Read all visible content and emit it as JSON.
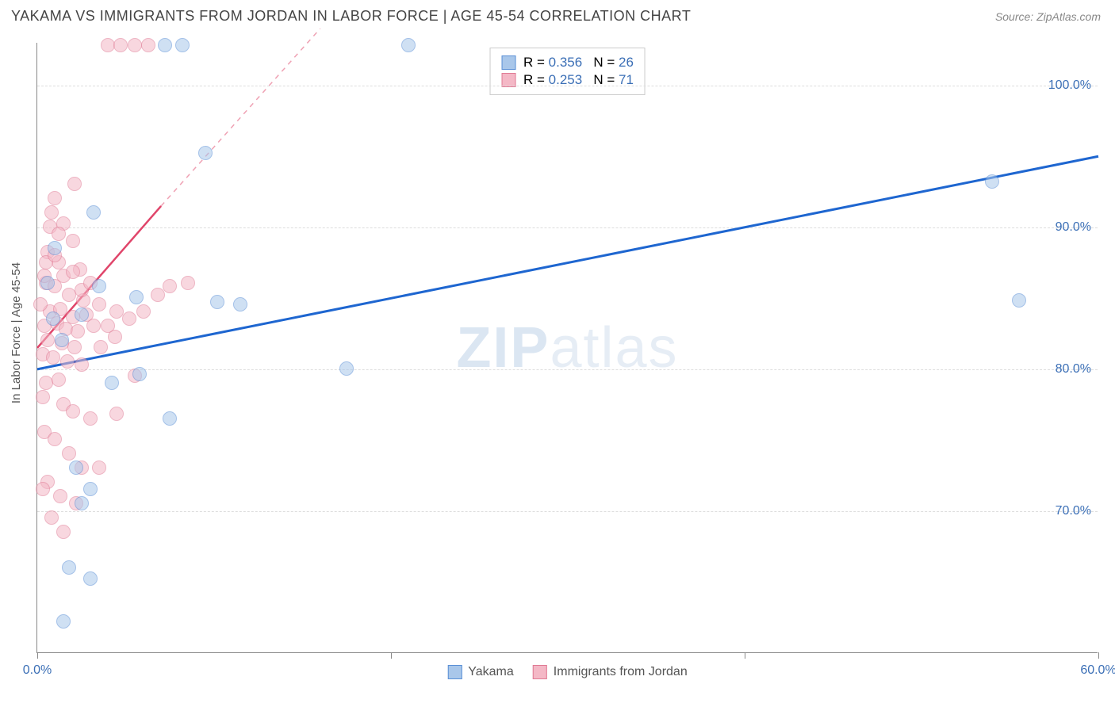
{
  "header": {
    "title": "YAKAMA VS IMMIGRANTS FROM JORDAN IN LABOR FORCE | AGE 45-54 CORRELATION CHART",
    "source": "Source: ZipAtlas.com"
  },
  "watermark": {
    "zip": "ZIP",
    "atlas": "atlas"
  },
  "chart": {
    "type": "scatter",
    "ylabel": "In Labor Force | Age 45-54",
    "xlim": [
      0,
      60
    ],
    "ylim": [
      60,
      103
    ],
    "xtick_values": [
      0,
      20,
      40,
      60
    ],
    "xtick_labels": [
      "0.0%",
      "",
      "",
      "60.0%"
    ],
    "ytick_values": [
      70,
      80,
      90,
      100
    ],
    "ytick_labels": [
      "70.0%",
      "80.0%",
      "90.0%",
      "100.0%"
    ],
    "grid_color": "#dddddd",
    "axis_color": "#888888",
    "label_color": "#3b6fb6",
    "background_color": "#ffffff",
    "marker_radius": 9,
    "marker_opacity": 0.55,
    "series": [
      {
        "name": "Yakama",
        "color_fill": "#a9c7ea",
        "color_stroke": "#5a8fd6",
        "R": "0.356",
        "N": "26",
        "trend": {
          "x1": 0,
          "y1": 80.0,
          "x2": 60,
          "y2": 95.0,
          "color": "#1e66d0",
          "width": 3,
          "dash_from_x": 60
        },
        "points": [
          [
            7.2,
            102.8
          ],
          [
            8.2,
            102.8
          ],
          [
            21.0,
            102.8
          ],
          [
            9.5,
            95.2
          ],
          [
            3.2,
            91.0
          ],
          [
            5.6,
            85.0
          ],
          [
            10.2,
            84.7
          ],
          [
            11.5,
            84.5
          ],
          [
            55.5,
            84.8
          ],
          [
            54.0,
            93.2
          ],
          [
            17.5,
            80.0
          ],
          [
            5.8,
            79.6
          ],
          [
            4.2,
            79.0
          ],
          [
            7.5,
            76.5
          ],
          [
            3.0,
            71.5
          ],
          [
            2.5,
            70.5
          ],
          [
            1.8,
            66.0
          ],
          [
            3.0,
            65.2
          ],
          [
            1.5,
            62.2
          ],
          [
            2.2,
            73.0
          ],
          [
            0.9,
            83.5
          ],
          [
            1.4,
            82.0
          ],
          [
            2.5,
            83.8
          ],
          [
            1.0,
            88.5
          ],
          [
            0.6,
            86.0
          ],
          [
            3.5,
            85.8
          ]
        ]
      },
      {
        "name": "Immigrants from Jordan",
        "color_fill": "#f4b8c6",
        "color_stroke": "#e07a94",
        "R": "0.253",
        "N": "71",
        "trend": {
          "x1": 0,
          "y1": 81.5,
          "x2": 7.0,
          "y2": 91.5,
          "color": "#e0456a",
          "width": 2.5,
          "dash_from_x": 7.0,
          "dash_x2": 16,
          "dash_y2": 104
        },
        "points": [
          [
            4.0,
            102.8
          ],
          [
            4.7,
            102.8
          ],
          [
            5.5,
            102.8
          ],
          [
            6.3,
            102.8
          ],
          [
            2.1,
            93.0
          ],
          [
            1.0,
            92.0
          ],
          [
            0.8,
            91.0
          ],
          [
            1.5,
            90.2
          ],
          [
            2.0,
            89.0
          ],
          [
            0.6,
            88.2
          ],
          [
            1.2,
            87.5
          ],
          [
            2.4,
            87.0
          ],
          [
            0.5,
            86.0
          ],
          [
            1.0,
            85.8
          ],
          [
            1.8,
            85.2
          ],
          [
            2.6,
            84.8
          ],
          [
            0.7,
            84.0
          ],
          [
            1.3,
            84.2
          ],
          [
            2.0,
            83.6
          ],
          [
            2.8,
            83.8
          ],
          [
            0.4,
            83.0
          ],
          [
            1.1,
            83.2
          ],
          [
            1.6,
            82.8
          ],
          [
            2.3,
            82.6
          ],
          [
            3.2,
            83.0
          ],
          [
            0.6,
            82.0
          ],
          [
            1.4,
            81.8
          ],
          [
            2.1,
            81.5
          ],
          [
            0.3,
            81.0
          ],
          [
            0.9,
            80.8
          ],
          [
            1.7,
            80.5
          ],
          [
            2.5,
            80.3
          ],
          [
            3.6,
            81.5
          ],
          [
            4.4,
            82.2
          ],
          [
            5.2,
            83.5
          ],
          [
            6.0,
            84.0
          ],
          [
            6.8,
            85.2
          ],
          [
            7.5,
            85.8
          ],
          [
            8.5,
            86.0
          ],
          [
            0.5,
            79.0
          ],
          [
            1.2,
            79.2
          ],
          [
            0.3,
            78.0
          ],
          [
            1.5,
            77.5
          ],
          [
            2.0,
            77.0
          ],
          [
            3.0,
            76.5
          ],
          [
            4.5,
            76.8
          ],
          [
            5.5,
            79.5
          ],
          [
            0.4,
            75.5
          ],
          [
            1.0,
            75.0
          ],
          [
            1.8,
            74.0
          ],
          [
            2.5,
            73.0
          ],
          [
            3.5,
            73.0
          ],
          [
            0.6,
            72.0
          ],
          [
            1.3,
            71.0
          ],
          [
            0.3,
            71.5
          ],
          [
            2.2,
            70.5
          ],
          [
            0.8,
            69.5
          ],
          [
            1.5,
            68.5
          ],
          [
            0.4,
            86.5
          ],
          [
            0.2,
            84.5
          ],
          [
            0.5,
            87.5
          ],
          [
            1.0,
            88.0
          ],
          [
            1.5,
            86.5
          ],
          [
            2.0,
            86.8
          ],
          [
            2.5,
            85.5
          ],
          [
            3.0,
            86.0
          ],
          [
            3.5,
            84.5
          ],
          [
            4.0,
            83.0
          ],
          [
            4.5,
            84.0
          ],
          [
            0.7,
            90.0
          ],
          [
            1.2,
            89.5
          ]
        ]
      }
    ],
    "legend_bottom": [
      {
        "label": "Yakama",
        "fill": "#a9c7ea",
        "stroke": "#5a8fd6"
      },
      {
        "label": "Immigrants from Jordan",
        "fill": "#f4b8c6",
        "stroke": "#e07a94"
      }
    ]
  }
}
